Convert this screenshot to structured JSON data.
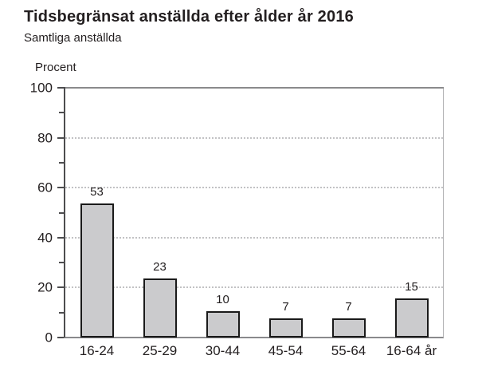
{
  "header": {
    "title": "Tidsbegränsat anställda efter ålder år 2016",
    "subtitle": "Samtliga anställda"
  },
  "chart_data": {
    "type": "bar",
    "title": "Tidsbegränsat anställda efter ålder år 2016",
    "subtitle": "Samtliga anställda",
    "ylabel": "Procent",
    "xlabel": "",
    "categories": [
      "16-24",
      "25-29",
      "30-44",
      "45-54",
      "55-64",
      "16-64 år"
    ],
    "values": [
      53,
      23,
      10,
      7,
      7,
      15
    ],
    "value_labels": [
      "53",
      "23",
      "10",
      "7",
      "7",
      "15"
    ],
    "ylim": [
      0,
      100
    ],
    "yticks_major": [
      0,
      20,
      40,
      60,
      80,
      100
    ],
    "yticks_minor": [
      10,
      30,
      50,
      70,
      90
    ],
    "grid": "horizontal dotted at major ticks (20,40,60,80), solid frame line at 100",
    "legend": "none",
    "colors": {
      "bar_fill": "#cbcbcd",
      "bar_border": "#1a1a1a",
      "axis_left": "#4d4d4f",
      "frame_top_bottom": "#8a8a8c",
      "frame_right": "#b3b3b5",
      "gridline": "#c2c2c4",
      "text": "#231f20"
    }
  }
}
